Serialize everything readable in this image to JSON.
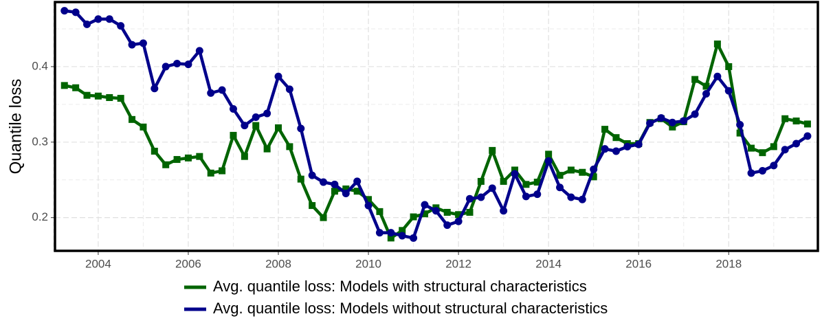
{
  "chart_data": {
    "type": "line",
    "y_label": "Quantile loss",
    "x": [
      2003.25,
      2003.5,
      2003.75,
      2004,
      2004.25,
      2004.5,
      2004.75,
      2005,
      2005.25,
      2005.5,
      2005.75,
      2006,
      2006.25,
      2006.5,
      2006.75,
      2007,
      2007.25,
      2007.5,
      2007.75,
      2008,
      2008.25,
      2008.5,
      2008.75,
      2009,
      2009.25,
      2009.5,
      2009.75,
      2010,
      2010.25,
      2010.5,
      2010.75,
      2011,
      2011.25,
      2011.5,
      2011.75,
      2012,
      2012.25,
      2012.5,
      2012.75,
      2013,
      2013.25,
      2013.5,
      2013.75,
      2014,
      2014.25,
      2014.5,
      2014.75,
      2015,
      2015.25,
      2015.5,
      2015.75,
      2016,
      2016.25,
      2016.5,
      2016.75,
      2017,
      2017.25,
      2017.5,
      2017.75,
      2018,
      2018.25,
      2018.5,
      2018.75,
      2019,
      2019.25,
      2019.5,
      2019.75
    ],
    "series": [
      {
        "name": "Avg. quantile loss: Models with structural characteristics",
        "color": "#006400",
        "marker": "square",
        "values": [
          0.375,
          0.372,
          0.362,
          0.361,
          0.359,
          0.358,
          0.33,
          0.32,
          0.288,
          0.27,
          0.277,
          0.279,
          0.281,
          0.259,
          0.262,
          0.309,
          0.281,
          0.322,
          0.291,
          0.319,
          0.294,
          0.251,
          0.216,
          0.2,
          0.235,
          0.238,
          0.235,
          0.224,
          0.208,
          0.173,
          0.183,
          0.201,
          0.205,
          0.213,
          0.207,
          0.204,
          0.207,
          0.248,
          0.289,
          0.248,
          0.263,
          0.244,
          0.247,
          0.284,
          0.256,
          0.263,
          0.26,
          0.254,
          0.317,
          0.306,
          0.298,
          0.298,
          0.326,
          0.331,
          0.32,
          0.327,
          0.383,
          0.374,
          0.43,
          0.4,
          0.312,
          0.292,
          0.286,
          0.294,
          0.331,
          0.328,
          0.324
        ]
      },
      {
        "name": "Avg. quantile loss: Models without structural characteristics",
        "color": "#00008b",
        "marker": "circle",
        "values": [
          0.474,
          0.472,
          0.456,
          0.463,
          0.463,
          0.454,
          0.429,
          0.431,
          0.371,
          0.4,
          0.404,
          0.403,
          0.421,
          0.365,
          0.369,
          0.344,
          0.322,
          0.333,
          0.338,
          0.387,
          0.37,
          0.318,
          0.256,
          0.247,
          0.244,
          0.232,
          0.248,
          0.216,
          0.18,
          0.18,
          0.176,
          0.173,
          0.217,
          0.209,
          0.19,
          0.195,
          0.225,
          0.227,
          0.239,
          0.209,
          0.258,
          0.228,
          0.231,
          0.275,
          0.24,
          0.227,
          0.224,
          0.264,
          0.291,
          0.288,
          0.294,
          0.297,
          0.325,
          0.332,
          0.326,
          0.328,
          0.337,
          0.364,
          0.387,
          0.368,
          0.323,
          0.259,
          0.262,
          0.269,
          0.29,
          0.298,
          0.308
        ]
      }
    ],
    "xlim": [
      2003.04,
      2019.98
    ],
    "ylim": [
      0.156,
      0.4855
    ],
    "xticks": [
      2004,
      2006,
      2008,
      2010,
      2012,
      2014,
      2016,
      2018
    ],
    "yticks": [
      0.2,
      0.3,
      0.4
    ],
    "x_minor_ticks": [
      2003,
      2005,
      2007,
      2009,
      2011,
      2013,
      2015,
      2017,
      2019
    ],
    "y_minor_ticks": [
      0.25,
      0.35,
      0.45
    ],
    "grid": true,
    "legend": "bottom"
  }
}
